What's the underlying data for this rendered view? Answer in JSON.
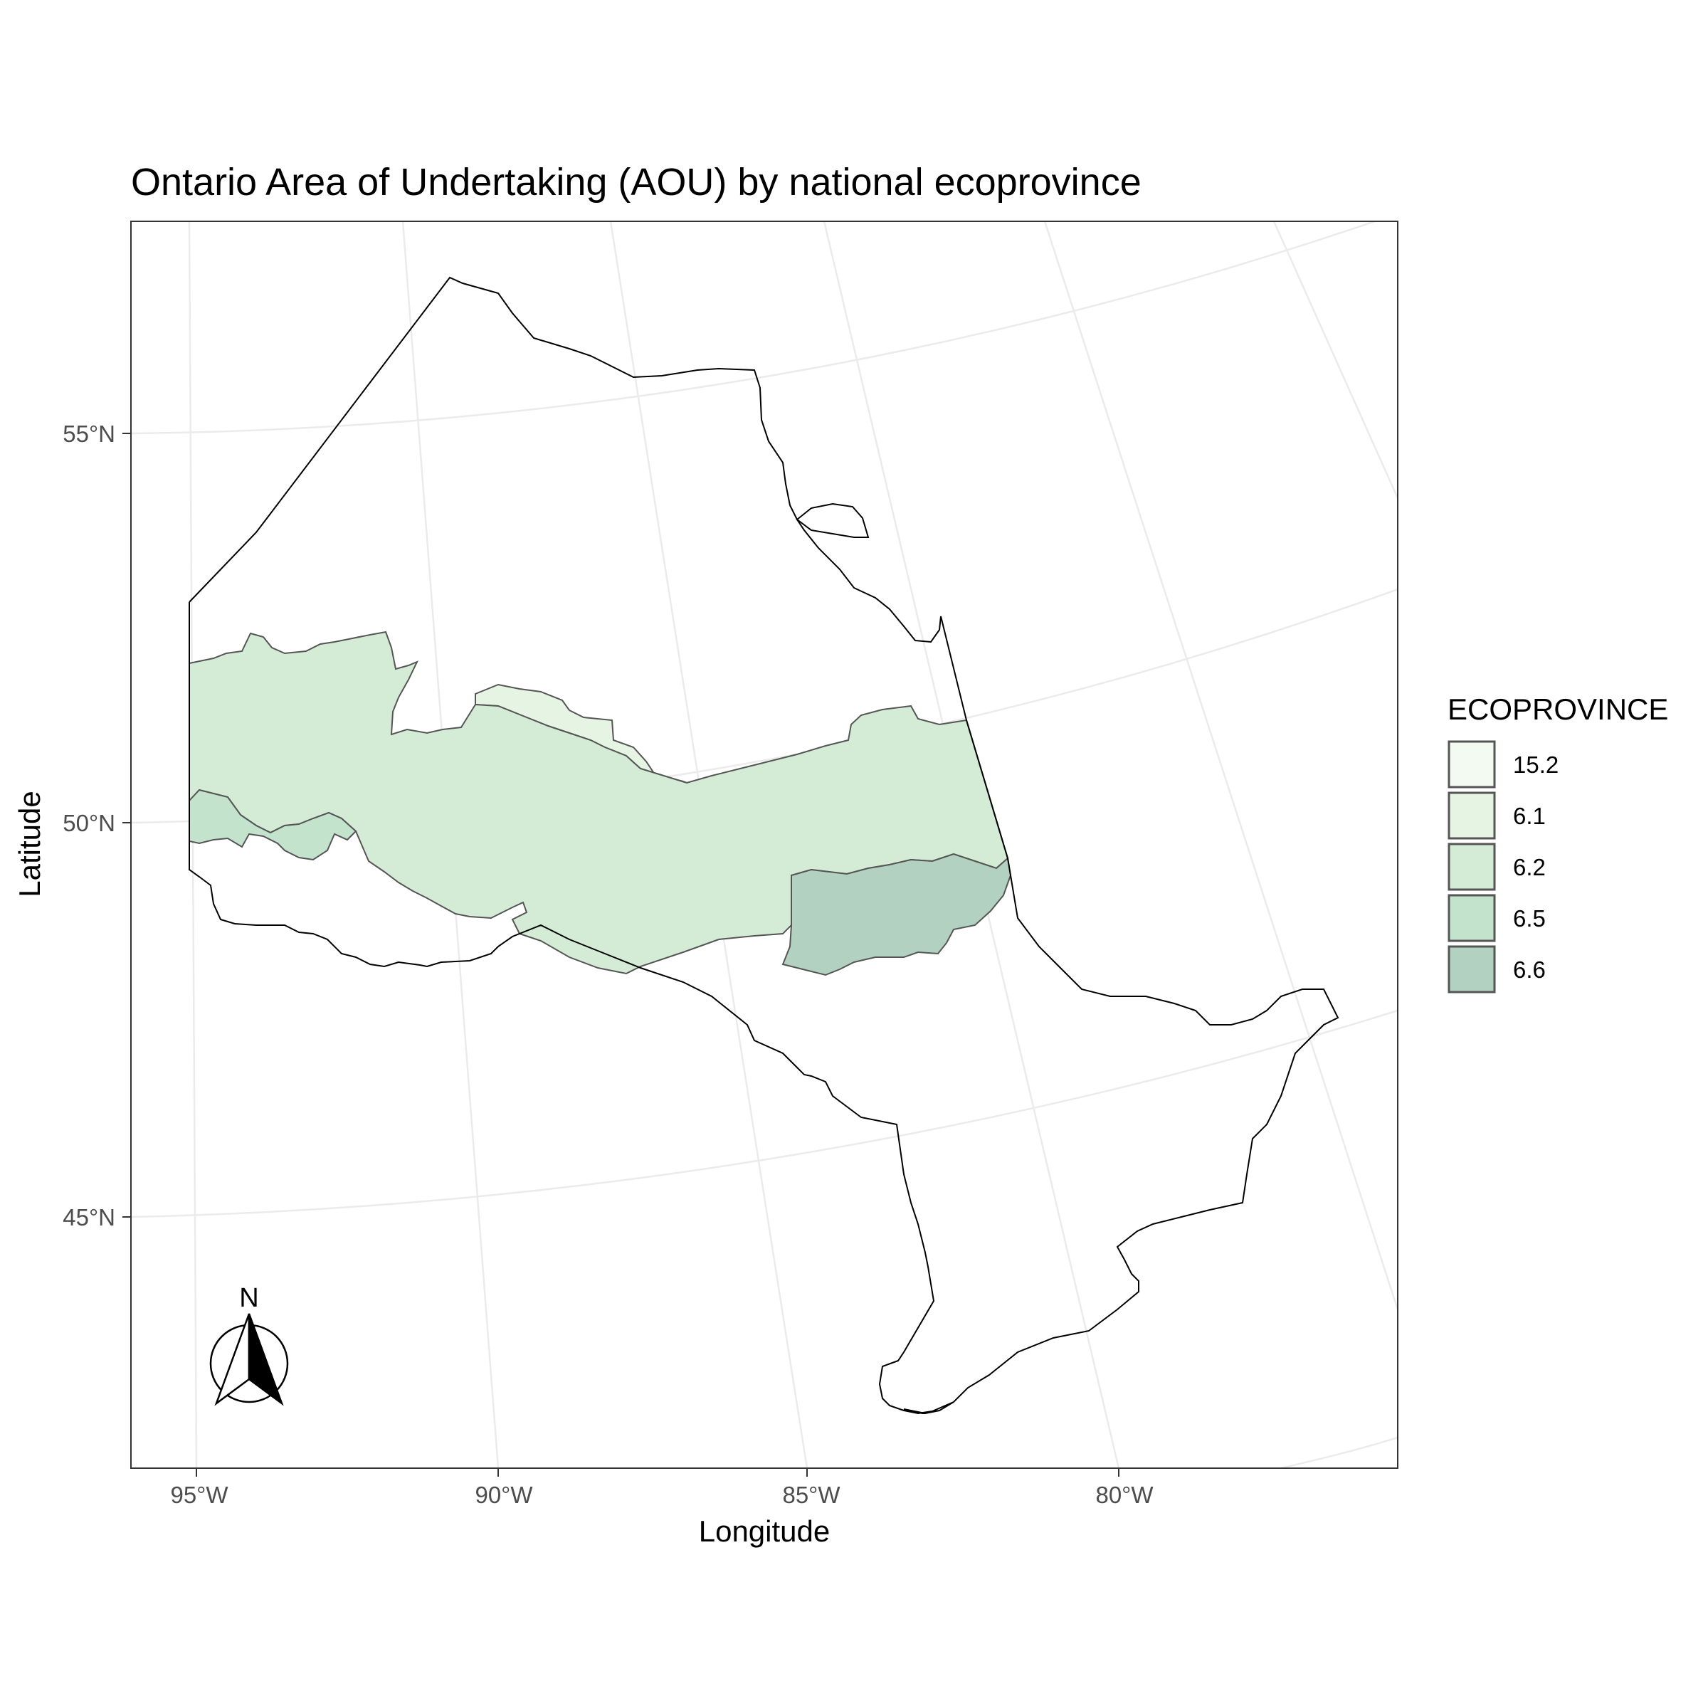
{
  "title": "Ontario Area of Undertaking (AOU) by national ecoprovince",
  "chart_data": {
    "type": "map",
    "title": "Ontario Area of Undertaking (AOU) by national ecoprovince",
    "xlabel": "Longitude",
    "ylabel": "Latitude",
    "x_ticks": [
      "95°W",
      "90°W",
      "85°W",
      "80°W"
    ],
    "y_ticks": [
      "55°N",
      "50°N",
      "45°N"
    ],
    "grid": true,
    "legend": {
      "title": "ECOPROVINCE",
      "placement": "right",
      "entries": [
        {
          "label": "15.2",
          "color": "#f3faf2"
        },
        {
          "label": "6.1",
          "color": "#e6f4e4"
        },
        {
          "label": "6.2",
          "color": "#d4ecd6"
        },
        {
          "label": "6.5",
          "color": "#c3e3cd"
        },
        {
          "label": "6.6",
          "color": "#b2d1c0"
        }
      ]
    },
    "regions": [
      {
        "ecoprovince": "6.1",
        "color": "#e6f4e4"
      },
      {
        "ecoprovince": "6.2",
        "color": "#d4ecd6"
      },
      {
        "ecoprovince": "6.5",
        "color": "#c3e3cd"
      },
      {
        "ecoprovince": "6.6",
        "color": "#b2d1c0"
      }
    ],
    "north_arrow": {
      "label": "N"
    }
  }
}
